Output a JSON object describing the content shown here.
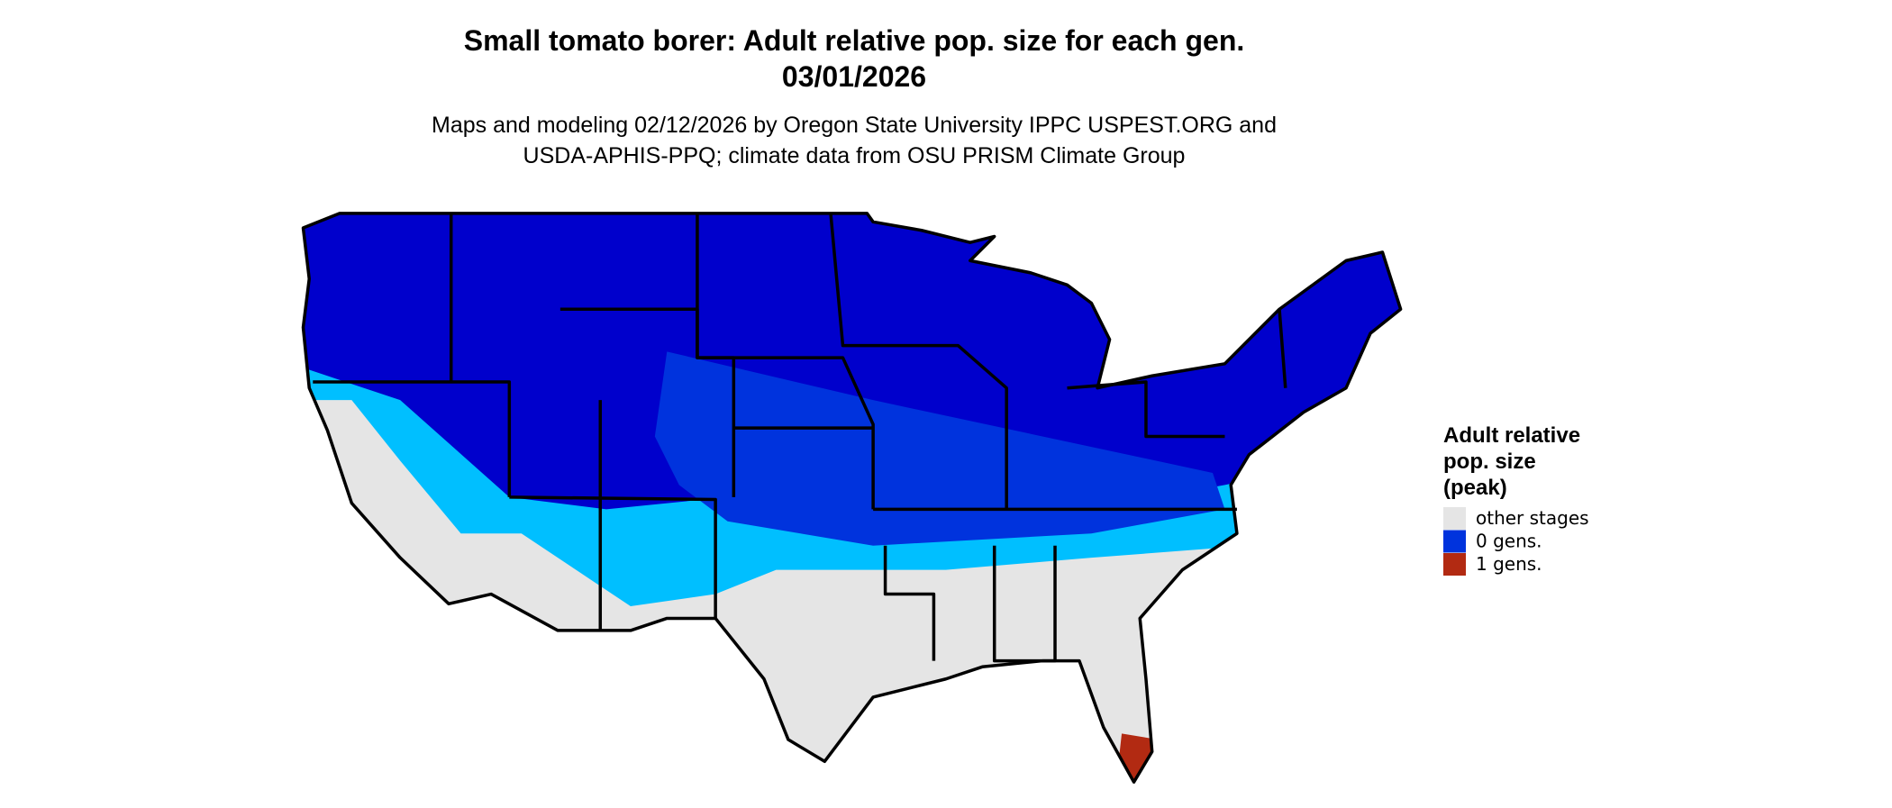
{
  "header": {
    "title": [
      "Small tomato borer: Adult relative pop. size for each gen.",
      "03/01/2026"
    ],
    "subtitle": [
      "Maps and modeling 02/12/2026 by Oregon State University IPPC USPEST.ORG and",
      "USDA-APHIS-PPQ; climate data from OSU PRISM Climate Group"
    ]
  },
  "legend": {
    "title": [
      "Adult relative",
      "pop. size",
      "(peak)"
    ],
    "items": [
      {
        "label": "other stages",
        "color": "#e5e5e5"
      },
      {
        "label": "0 gens.",
        "color": "#0033dd"
      },
      {
        "label": "1 gens.",
        "color": "#b22a12"
      }
    ]
  }
}
